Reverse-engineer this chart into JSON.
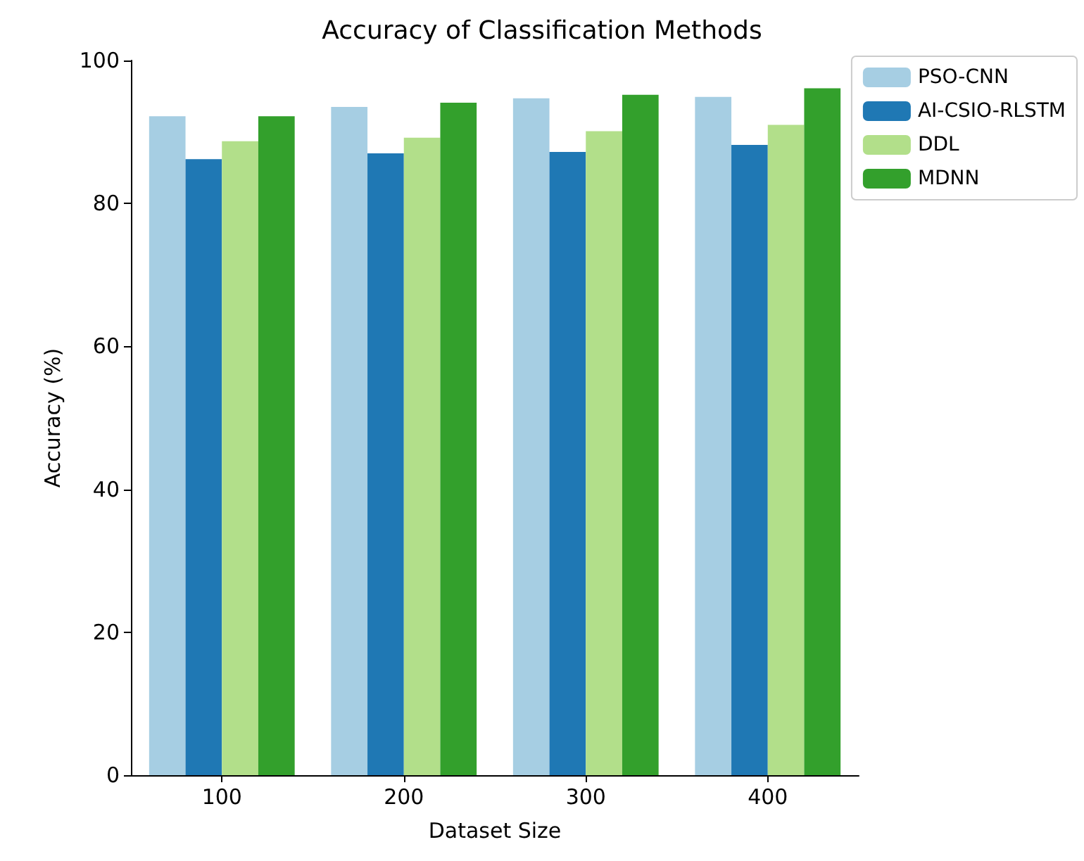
{
  "chart_data": {
    "type": "bar",
    "title": "Accuracy of Classification Methods",
    "xlabel": "Dataset Size",
    "ylabel": "Accuracy (%)",
    "categories": [
      "100",
      "200",
      "300",
      "400"
    ],
    "series": [
      {
        "name": "PSO-CNN",
        "color": "#a6cee3",
        "values": [
          92.2,
          93.5,
          94.7,
          94.9
        ]
      },
      {
        "name": "AI-CSIO-RLSTM",
        "color": "#1f78b4",
        "values": [
          86.2,
          87.0,
          87.2,
          88.2
        ]
      },
      {
        "name": "DDL",
        "color": "#b2df8a",
        "values": [
          88.7,
          89.2,
          90.1,
          91.0
        ]
      },
      {
        "name": "MDNN",
        "color": "#33a02c",
        "values": [
          92.2,
          94.1,
          95.2,
          96.1
        ]
      }
    ],
    "ylim": [
      0,
      100
    ],
    "yticks": [
      0,
      20,
      40,
      60,
      80,
      100
    ],
    "grid": false,
    "legend": "top right"
  }
}
